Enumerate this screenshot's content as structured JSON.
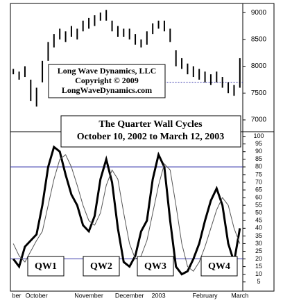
{
  "chart_data": [
    {
      "type": "ohlc",
      "high": [
        7950,
        7900,
        8000,
        7750,
        7600,
        8100,
        8450,
        8600,
        8700,
        8650,
        8750,
        8700,
        8850,
        8900,
        8950,
        9000,
        9050,
        8850,
        8750,
        8700,
        8700,
        8600,
        8500,
        8650,
        8800,
        8850,
        8850,
        8700,
        8300,
        8150,
        8050,
        8000,
        7950,
        7900,
        7850,
        7900,
        7800,
        7700,
        7650,
        8150
      ],
      "low": [
        7850,
        7750,
        7800,
        7350,
        7250,
        7700,
        8100,
        8350,
        8500,
        8450,
        8550,
        8500,
        8650,
        8700,
        8750,
        8850,
        8850,
        8650,
        8550,
        8550,
        8500,
        8400,
        8350,
        8400,
        8600,
        8700,
        8650,
        8450,
        8000,
        7950,
        7850,
        7800,
        7750,
        7700,
        7650,
        7700,
        7600,
        7500,
        7450,
        7600
      ],
      "color": "#000000",
      "xlim": [
        0,
        40
      ],
      "ylim": [
        6780,
        9170
      ],
      "yticks": [
        7000,
        7500,
        8000,
        8500,
        9000
      ],
      "hline": {
        "value": 7700,
        "from": 25,
        "color": "#3333aa"
      },
      "annotations": [
        "Long Wave Dynamics, LLC",
        "Copyright © 2009",
        "LongWaveDynamics.com"
      ]
    },
    {
      "type": "line",
      "title": "The Quarter Wall Cycles",
      "subtitle": "October 10, 2002 to March 12, 2003",
      "xlim": [
        0,
        40
      ],
      "xticks": [
        {
          "value": 0,
          "label": "ber"
        },
        {
          "value": 4,
          "label": "October"
        },
        {
          "value": 13,
          "label": "November"
        },
        {
          "value": 20,
          "label": "December"
        },
        {
          "value": 25,
          "label": "2003"
        },
        {
          "value": 33,
          "label": "February"
        },
        {
          "value": 39,
          "label": "March"
        }
      ],
      "ylim": [
        -1,
        103
      ],
      "yticks": [
        5,
        10,
        15,
        20,
        25,
        30,
        35,
        40,
        45,
        50,
        55,
        60,
        65,
        70,
        75,
        80,
        85,
        90,
        95,
        100
      ],
      "hlines": [
        80,
        20
      ],
      "hline_color": "#3333aa",
      "series": [
        {
          "color": "#000000",
          "width": 3,
          "values": [
            20,
            15,
            28,
            32,
            36,
            55,
            80,
            93,
            90,
            75,
            62,
            55,
            42,
            38,
            48,
            72,
            85,
            70,
            40,
            18,
            15,
            22,
            38,
            45,
            72,
            88,
            80,
            45,
            15,
            10,
            12,
            20,
            30,
            45,
            58,
            66,
            55,
            30,
            18,
            40
          ]
        },
        {
          "color": "#555555",
          "width": 1,
          "values": [
            30,
            22,
            18,
            25,
            32,
            38,
            55,
            72,
            85,
            88,
            80,
            68,
            55,
            45,
            42,
            50,
            68,
            78,
            72,
            50,
            30,
            20,
            22,
            32,
            50,
            68,
            82,
            78,
            55,
            30,
            15,
            12,
            18,
            28,
            40,
            52,
            60,
            55,
            40,
            30
          ]
        }
      ],
      "annotations": [
        "QW1",
        "QW2",
        "QW3",
        "QW4"
      ]
    }
  ]
}
